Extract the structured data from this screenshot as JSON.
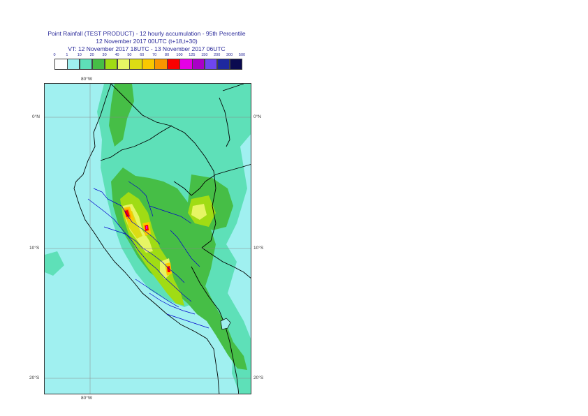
{
  "header": {
    "line1": "Point Rainfall (TEST PRODUCT) - 12 hourly accumulation - 95th Percentile",
    "line2": "12 November 2017 00UTC (t+18,t+30)",
    "line3": "VT: 12 November 2017 18UTC - 13 November 2017 06UTC"
  },
  "legend": {
    "ticks": [
      "0",
      "1",
      "10",
      "20",
      "30",
      "40",
      "50",
      "60",
      "70",
      "80",
      "100",
      "125",
      "150",
      "200",
      "300",
      "500"
    ],
    "colors": [
      "#ffffff",
      "#a0f0f0",
      "#5ee0b8",
      "#46be46",
      "#a0dc14",
      "#e6f564",
      "#dcdc14",
      "#fac800",
      "#fa9600",
      "#fa0000",
      "#e600e6",
      "#aa00c8",
      "#6e46f0",
      "#1e28a0",
      "#0a0a50"
    ]
  },
  "map": {
    "labels": {
      "lon_top": "80°W",
      "lon_bottom": "80°W",
      "lat_0_left": "0°N",
      "lat_0_right": "0°N",
      "lat_10_left": "10°S",
      "lat_10_right": "10°S",
      "lat_20_left": "20°S",
      "lat_20_right": "20°S"
    }
  }
}
